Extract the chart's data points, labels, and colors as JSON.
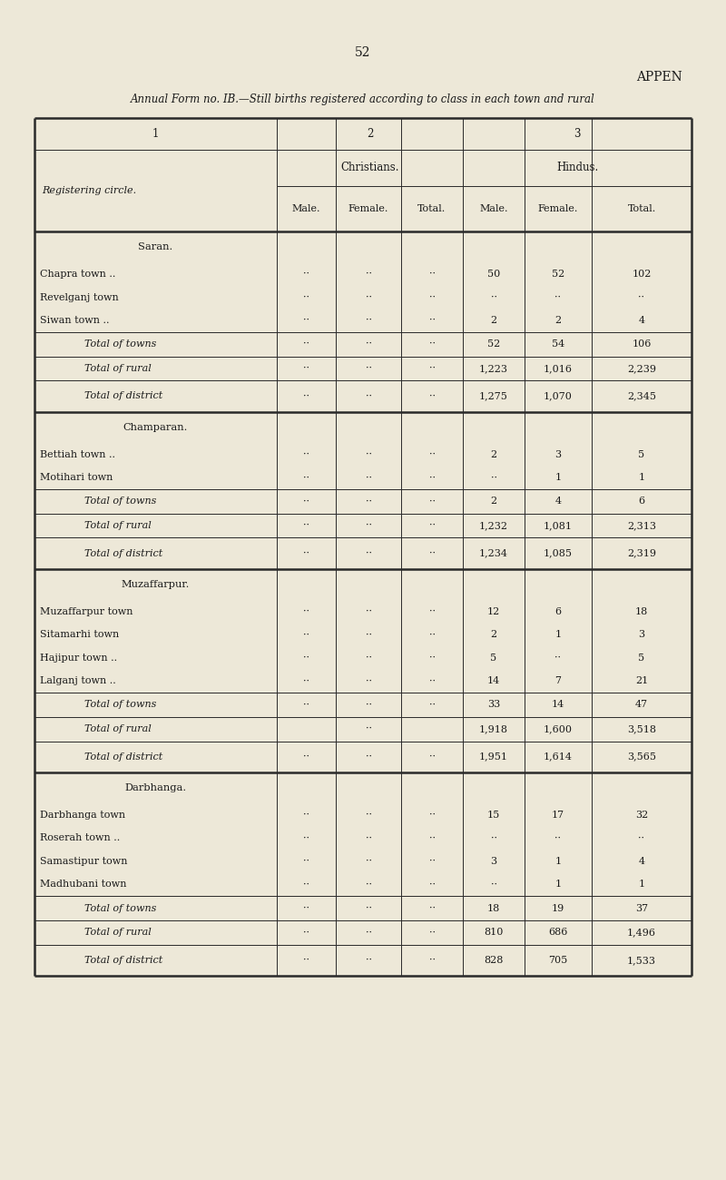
{
  "page_number": "52",
  "top_right_text": "APPEN",
  "title": "Annual Form no. IB.—Still births registered according to class in each town and rural",
  "col_headers_row1": [
    "1",
    "2",
    "3"
  ],
  "col_headers_row2": [
    "Christians.",
    "Hindus."
  ],
  "col_headers_row3": [
    "Male.",
    "Female.",
    "Total.",
    "Male.",
    "Female.",
    "Total."
  ],
  "registering_circle_label": "Registering circle.",
  "background_color": "#ede8d8",
  "text_color": "#1a1a1a",
  "rows": [
    {
      "label": "Saran.",
      "type": "section_header",
      "chr_m": "",
      "chr_f": "",
      "chr_t": "",
      "hin_m": "",
      "hin_f": "",
      "hin_t": ""
    },
    {
      "label": "Chapra town ..",
      "type": "town",
      "chr_m": "..",
      "chr_f": "..",
      "chr_t": "..",
      "hin_m": "50",
      "hin_f": "52",
      "hin_t": "102"
    },
    {
      "label": "Revelganj town",
      "type": "town",
      "chr_m": "..",
      "chr_f": "..",
      "chr_t": "..",
      "hin_m": "..",
      "hin_f": "..",
      "hin_t": ".."
    },
    {
      "label": "Siwan town ..",
      "type": "town",
      "chr_m": "..",
      "chr_f": "..",
      "chr_t": "..",
      "hin_m": "2",
      "hin_f": "2",
      "hin_t": "4"
    },
    {
      "label": "Total of towns",
      "type": "subtotal",
      "chr_m": "..",
      "chr_f": "..",
      "chr_t": "..",
      "hin_m": "52",
      "hin_f": "54",
      "hin_t": "106"
    },
    {
      "label": "Total of rural",
      "type": "subtotal",
      "chr_m": "..",
      "chr_f": "..",
      "chr_t": "..",
      "hin_m": "1,223",
      "hin_f": "1,016",
      "hin_t": "2,239"
    },
    {
      "label": "Total of district",
      "type": "total",
      "chr_m": "..",
      "chr_f": "..",
      "chr_t": "..",
      "hin_m": "1,275",
      "hin_f": "1,070",
      "hin_t": "2,345"
    },
    {
      "label": "Champaran.",
      "type": "section_header",
      "chr_m": "",
      "chr_f": "",
      "chr_t": "",
      "hin_m": "",
      "hin_f": "",
      "hin_t": ""
    },
    {
      "label": "Bettiah town ..",
      "type": "town",
      "chr_m": "..",
      "chr_f": "..",
      "chr_t": "..",
      "hin_m": "2",
      "hin_f": "3",
      "hin_t": "5"
    },
    {
      "label": "Motihari town",
      "type": "town",
      "chr_m": "..",
      "chr_f": "..",
      "chr_t": "..",
      "hin_m": "..",
      "hin_f": "1",
      "hin_t": "1"
    },
    {
      "label": "Total of towns",
      "type": "subtotal",
      "chr_m": "..",
      "chr_f": "..",
      "chr_t": "..",
      "hin_m": "2",
      "hin_f": "4",
      "hin_t": "6"
    },
    {
      "label": "Total of rural",
      "type": "subtotal",
      "chr_m": "..",
      "chr_f": "..",
      "chr_t": "..",
      "hin_m": "1,232",
      "hin_f": "1,081",
      "hin_t": "2,313"
    },
    {
      "label": "Total of district",
      "type": "total",
      "chr_m": "..",
      "chr_f": "..",
      "chr_t": "..",
      "hin_m": "1,234",
      "hin_f": "1,085",
      "hin_t": "2,319"
    },
    {
      "label": "Muzaffarpur.",
      "type": "section_header",
      "chr_m": "",
      "chr_f": "",
      "chr_t": "",
      "hin_m": "",
      "hin_f": "",
      "hin_t": ""
    },
    {
      "label": "Muzaffarpur town",
      "type": "town",
      "chr_m": "..",
      "chr_f": "..",
      "chr_t": "..",
      "hin_m": "12",
      "hin_f": "6",
      "hin_t": "18"
    },
    {
      "label": "Sitamarhi town",
      "type": "town",
      "chr_m": "..",
      "chr_f": "..",
      "chr_t": "..",
      "hin_m": "2",
      "hin_f": "1",
      "hin_t": "3"
    },
    {
      "label": "Hajipur town ..",
      "type": "town",
      "chr_m": "..",
      "chr_f": "..",
      "chr_t": "..",
      "hin_m": "5",
      "hin_f": "..",
      "hin_t": "5"
    },
    {
      "label": "Lalganj town ..",
      "type": "town",
      "chr_m": "..",
      "chr_f": "..",
      "chr_t": "..",
      "hin_m": "14",
      "hin_f": "7",
      "hin_t": "21"
    },
    {
      "label": "Total of towns",
      "type": "subtotal",
      "chr_m": "..",
      "chr_f": "..",
      "chr_t": "..",
      "hin_m": "33",
      "hin_f": "14",
      "hin_t": "47"
    },
    {
      "label": "Total of rural",
      "type": "subtotal",
      "chr_m": "",
      "chr_f": "..",
      "chr_t": "",
      "hin_m": "1,918",
      "hin_f": "1,600",
      "hin_t": "3,518"
    },
    {
      "label": "Total of district",
      "type": "total",
      "chr_m": "..",
      "chr_f": "..",
      "chr_t": "..",
      "hin_m": "1,951",
      "hin_f": "1,614",
      "hin_t": "3,565"
    },
    {
      "label": "Darbhanga.",
      "type": "section_header",
      "chr_m": "",
      "chr_f": "",
      "chr_t": "",
      "hin_m": "",
      "hin_f": "",
      "hin_t": ""
    },
    {
      "label": "Darbhanga town",
      "type": "town",
      "chr_m": "..",
      "chr_f": "..",
      "chr_t": "..",
      "hin_m": "15",
      "hin_f": "17",
      "hin_t": "32"
    },
    {
      "label": "Roserah town ..",
      "type": "town",
      "chr_m": "..",
      "chr_f": "..",
      "chr_t": "..",
      "hin_m": "..",
      "hin_f": "..",
      "hin_t": ".."
    },
    {
      "label": "Samastipur town",
      "type": "town",
      "chr_m": "..",
      "chr_f": "..",
      "chr_t": "..",
      "hin_m": "3",
      "hin_f": "1",
      "hin_t": "4"
    },
    {
      "label": "Madhubani town",
      "type": "town",
      "chr_m": "..",
      "chr_f": "..",
      "chr_t": "..",
      "hin_m": "..",
      "hin_f": "1",
      "hin_t": "1"
    },
    {
      "label": "Total of towns",
      "type": "subtotal",
      "chr_m": "..",
      "chr_f": "..",
      "chr_t": "..",
      "hin_m": "18",
      "hin_f": "19",
      "hin_t": "37"
    },
    {
      "label": "Total of rural",
      "type": "subtotal",
      "chr_m": "..",
      "chr_f": "..",
      "chr_t": "..",
      "hin_m": "810",
      "hin_f": "686",
      "hin_t": "1,496"
    },
    {
      "label": "Total of district",
      "type": "total",
      "chr_m": "..",
      "chr_f": "..",
      "chr_t": "..",
      "hin_m": "828",
      "hin_f": "705",
      "hin_t": "1,533"
    }
  ]
}
